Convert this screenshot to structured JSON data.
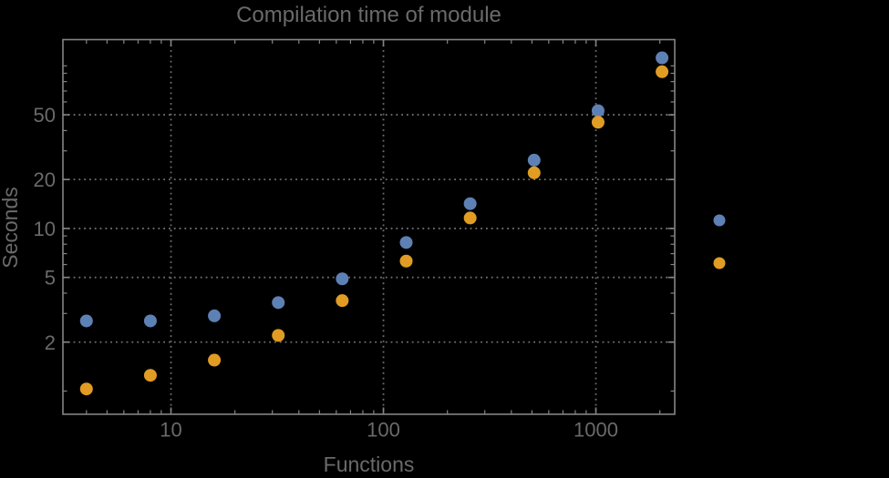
{
  "window": {
    "background": "#000000"
  },
  "chart_data": {
    "type": "scatter",
    "title": "Compilation time of module",
    "text_color": "#6a6a6a",
    "frame_color": "#848484",
    "x_axis": {
      "label": "Functions",
      "scale": "log",
      "range": [
        3.1,
        2350
      ],
      "major_ticks": [
        {
          "value": 10,
          "label": "10"
        },
        {
          "value": 100,
          "label": "100"
        },
        {
          "value": 1000,
          "label": "1000"
        }
      ],
      "minor_ticks": [
        4,
        5,
        6,
        7,
        8,
        9,
        20,
        30,
        40,
        50,
        60,
        70,
        80,
        90,
        200,
        300,
        400,
        500,
        600,
        700,
        800,
        900,
        2000
      ]
    },
    "y_axis": {
      "label": "Seconds",
      "scale": "log",
      "range": [
        0.72,
        145
      ],
      "major_ticks": [
        {
          "value": 2,
          "label": "2"
        },
        {
          "value": 5,
          "label": "5"
        },
        {
          "value": 10,
          "label": "10"
        },
        {
          "value": 20,
          "label": "20"
        },
        {
          "value": 50,
          "label": "50"
        }
      ],
      "minor_ticks": [
        1,
        3,
        4,
        6,
        7,
        8,
        9,
        30,
        40,
        60,
        70,
        80,
        90,
        100
      ]
    },
    "grid": {
      "style": "dotted",
      "color": "#6e6e6e",
      "x_values": [
        10,
        100,
        1000
      ],
      "y_values": [
        2,
        5,
        10,
        20,
        50
      ]
    },
    "x": [
      4,
      8,
      16,
      32,
      64,
      128,
      256,
      512,
      1024,
      2048
    ],
    "series": [
      {
        "id": "series-blue",
        "color": "#5e81b5",
        "values": [
          2.7,
          2.7,
          2.9,
          3.5,
          4.9,
          8.2,
          14.2,
          26.3,
          53,
          112
        ]
      },
      {
        "id": "series-orange",
        "color": "#e19c24",
        "values": [
          1.03,
          1.25,
          1.55,
          2.2,
          3.6,
          6.3,
          11.6,
          22,
          45,
          92
        ]
      }
    ],
    "legend": {
      "markers": [
        {
          "id": "legend-marker-blue",
          "color": "#5e81b5"
        },
        {
          "id": "legend-marker-orange",
          "color": "#e19c24"
        }
      ]
    }
  }
}
